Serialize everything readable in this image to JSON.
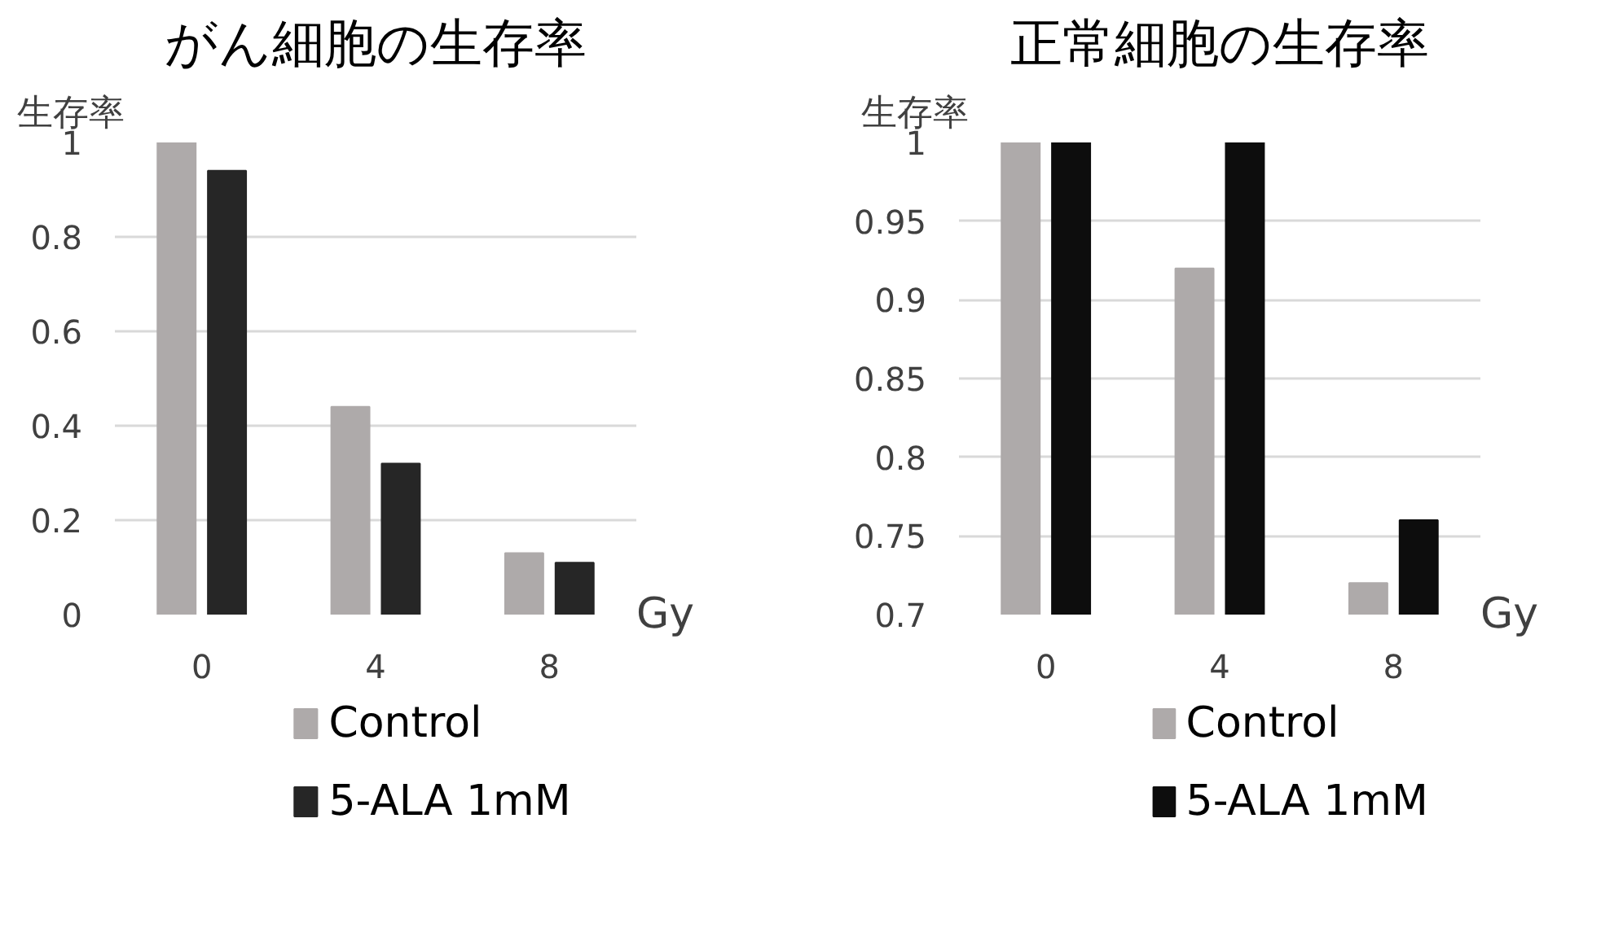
{
  "chart_data": [
    {
      "type": "bar",
      "title": "がん細胞の生存率",
      "ylabel": "生存率",
      "xlabel": "Gy",
      "categories": [
        "0",
        "4",
        "8"
      ],
      "series": [
        {
          "name": "Control",
          "color": "#aeaaaa",
          "values": [
            1.0,
            0.44,
            0.13
          ]
        },
        {
          "name": "5-ALA 1mM",
          "color": "#262626",
          "values": [
            0.94,
            0.32,
            0.11
          ]
        }
      ],
      "ylim": [
        0,
        1
      ],
      "yticks": [
        0,
        0.2,
        0.4,
        0.6,
        0.8,
        1
      ],
      "grid": "y",
      "legend": "bottom"
    },
    {
      "type": "bar",
      "title": "正常細胞の生存率",
      "ylabel": "生存率",
      "xlabel": "Gy",
      "categories": [
        "0",
        "4",
        "8"
      ],
      "series": [
        {
          "name": "Control",
          "color": "#aeaaaa",
          "values": [
            1.0,
            0.92,
            0.72
          ]
        },
        {
          "name": "5-ALA 1mM",
          "color": "#0d0d0d",
          "values": [
            1.0,
            1.0,
            0.76
          ]
        }
      ],
      "ylim": [
        0.7,
        1
      ],
      "yticks": [
        0.7,
        0.75,
        0.8,
        0.85,
        0.9,
        0.95,
        1
      ],
      "grid": "y",
      "legend": "bottom"
    }
  ]
}
